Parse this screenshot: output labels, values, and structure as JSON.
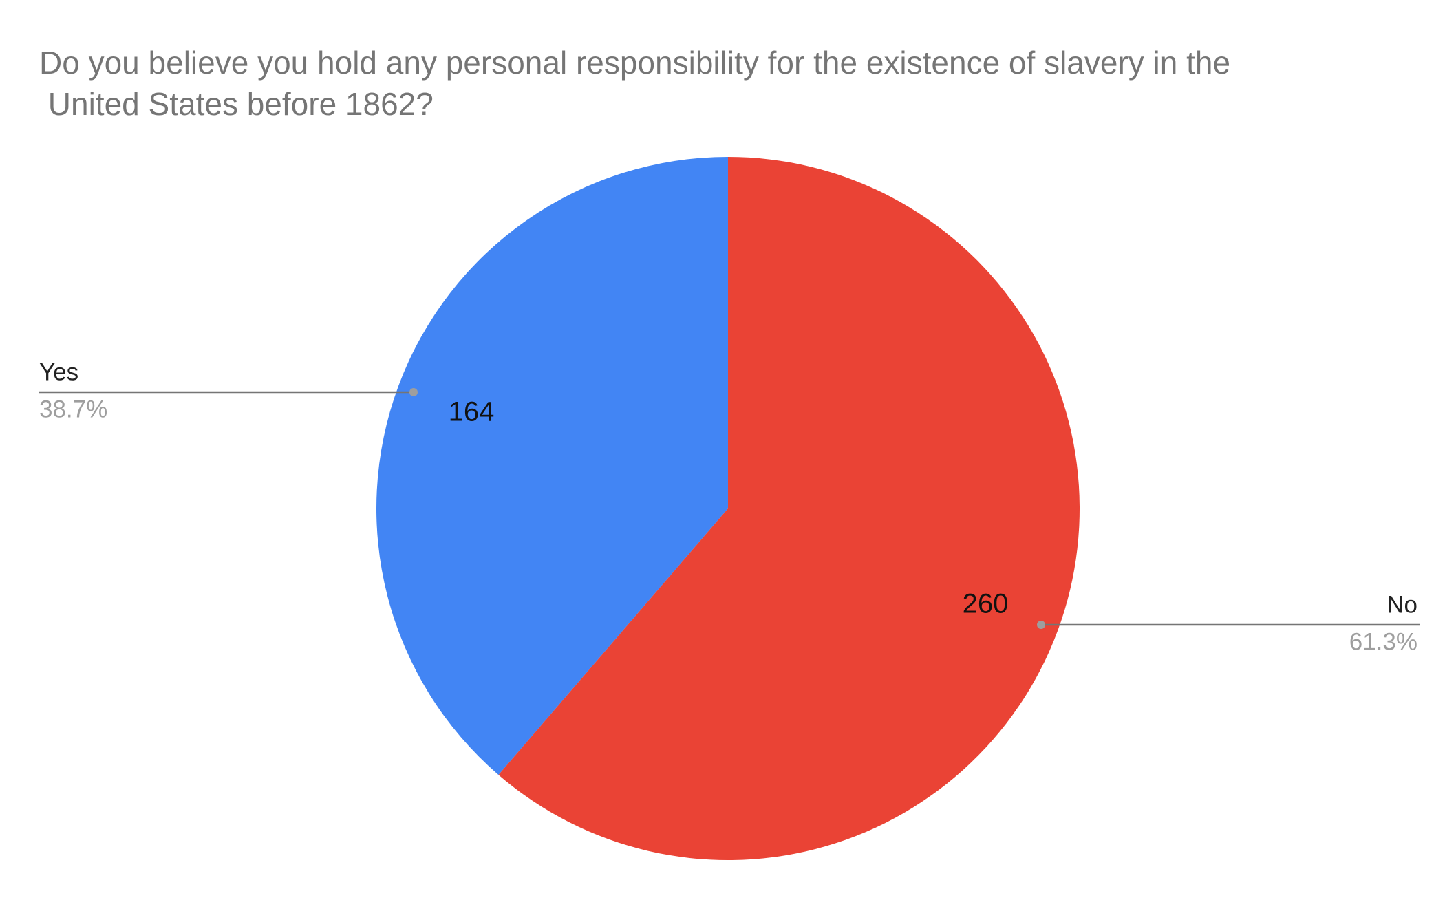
{
  "chart_data": {
    "type": "pie",
    "title": "Do you believe you hold any personal responsibility for the existence of slavery in the United States before 1862?",
    "categories": [
      "Yes",
      "No"
    ],
    "values": [
      164,
      260
    ],
    "percent_labels": [
      "38.7%",
      "61.3%"
    ],
    "colors": [
      "#4285f4",
      "#ea4335"
    ]
  }
}
